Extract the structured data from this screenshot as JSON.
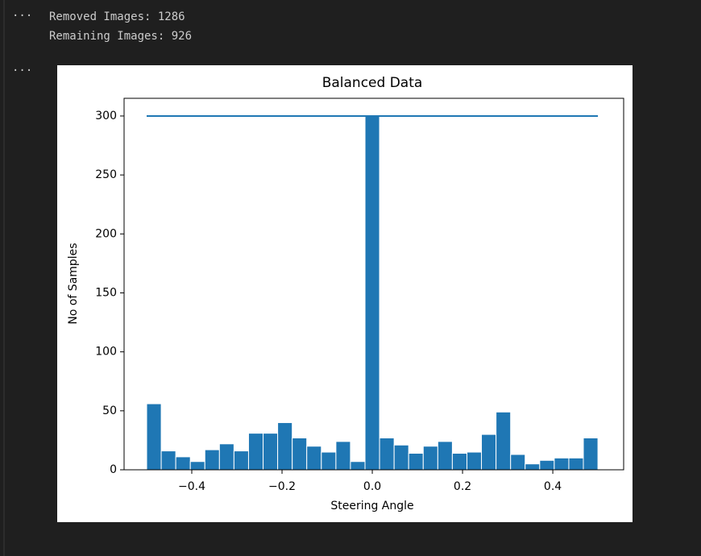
{
  "output": [
    "Removed Images: 1286",
    "Remaining Images: 926"
  ],
  "chart_data": {
    "type": "histogram",
    "title": "Balanced Data",
    "x_label": "Steering Angle",
    "y_label": "No of Samples",
    "color": "#1f77b4",
    "bins": [
      -0.5,
      -0.4677,
      -0.4355,
      -0.4032,
      -0.371,
      -0.3387,
      -0.3065,
      -0.2742,
      -0.2419,
      -0.2097,
      -0.1774,
      -0.1452,
      -0.1129,
      -0.0806,
      -0.0484,
      -0.0161,
      0.0161,
      0.0484,
      0.0806,
      0.1129,
      0.1452,
      0.1774,
      0.2097,
      0.2419,
      0.2742,
      0.3065,
      0.3387,
      0.371,
      0.4032,
      0.4355,
      0.4677,
      0.5
    ],
    "values": [
      56,
      16,
      11,
      7,
      17,
      22,
      16,
      31,
      31,
      40,
      27,
      20,
      15,
      24,
      7,
      300,
      27,
      21,
      14,
      20,
      24,
      14,
      15,
      30,
      49,
      13,
      5,
      8,
      10,
      10,
      27
    ],
    "lines": [
      {
        "x": [
          -0.5,
          0.5
        ],
        "values": [
          300,
          300
        ],
        "color": "#1f77b4"
      }
    ],
    "xlim": [
      -0.55,
      0.557
    ],
    "ylim": [
      0,
      315
    ],
    "xticks": [
      {
        "value": -0.4,
        "label": "−0.4"
      },
      {
        "value": -0.2,
        "label": "−0.2"
      },
      {
        "value": 0,
        "label": "0.0"
      },
      0.2,
      0.4
    ],
    "yticks": [
      0,
      50,
      100,
      150,
      200,
      250,
      300
    ]
  }
}
